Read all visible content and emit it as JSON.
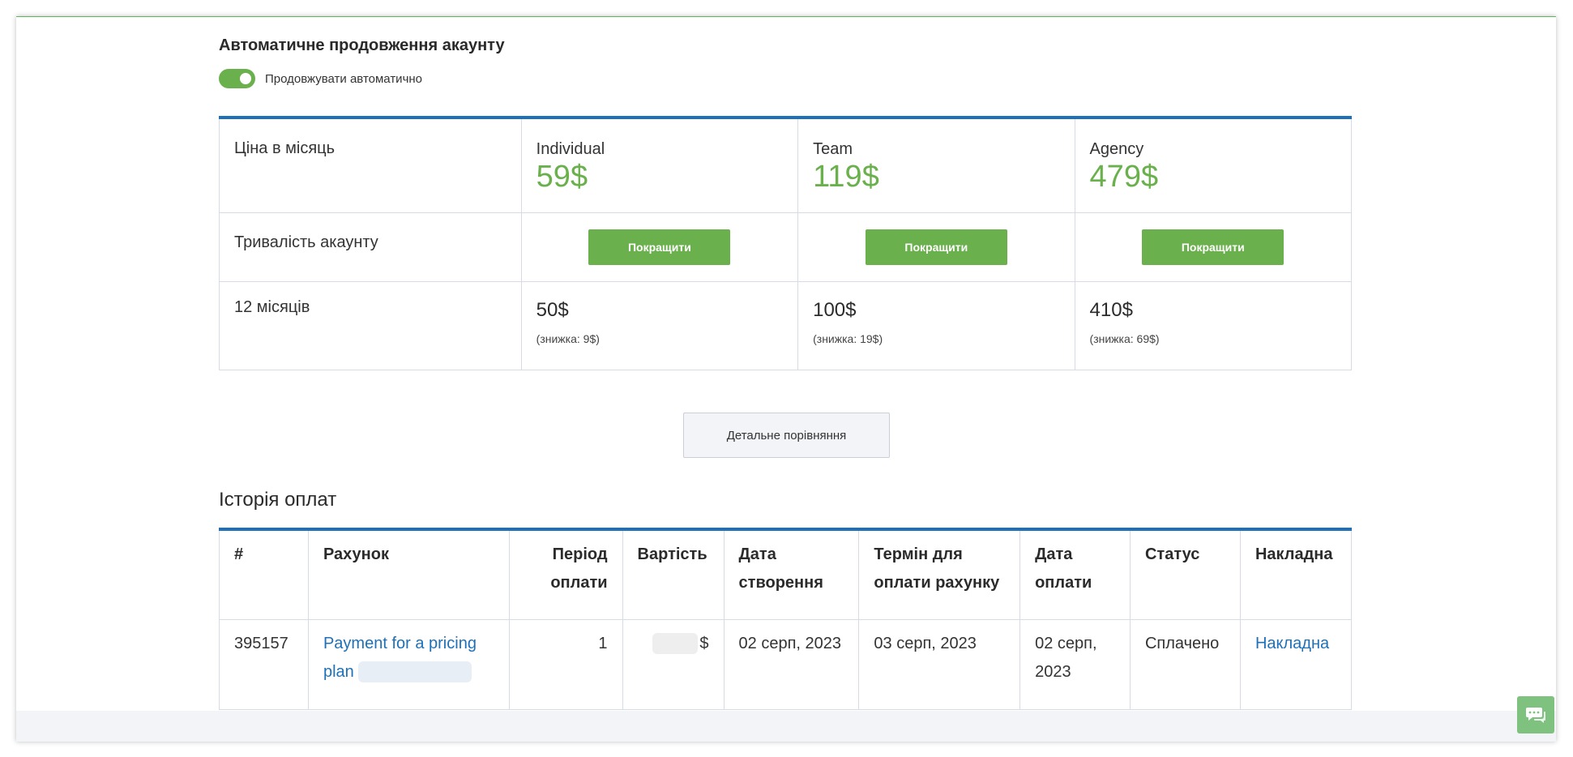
{
  "autorenew": {
    "title": "Автоматичне продовження акаунту",
    "toggle_label": "Продовжувати автоматично",
    "enabled": true
  },
  "pricing": {
    "price_per_month_label": "Ціна в місяць",
    "duration_label": "Тривалість акаунту",
    "term_label": "12 місяців",
    "upgrade_label": "Покращити",
    "plans": [
      {
        "name": "Individual",
        "price": "59$",
        "term_price": "50$",
        "discount": "(знижка: 9$)"
      },
      {
        "name": "Team",
        "price": "119$",
        "term_price": "100$",
        "discount": "(знижка: 19$)"
      },
      {
        "name": "Agency",
        "price": "479$",
        "term_price": "410$",
        "discount": "(знижка: 69$)"
      }
    ]
  },
  "compare_button": "Детальне порівняння",
  "history": {
    "title": "Історія оплат",
    "columns": [
      "#",
      "Рахунок",
      "Період оплати",
      "Вартість",
      "Дата створення",
      "Термін для оплати рахунку",
      "Дата оплати",
      "Статус",
      "Накладна"
    ],
    "rows": [
      {
        "id": "395157",
        "invoice": "Payment for a pricing plan",
        "period": "1",
        "amount": "$",
        "created": "02 серп, 2023",
        "due": "03 серп, 2023",
        "paid": "02 серп, 2023",
        "status": "Сплачено",
        "bill": "Накладна"
      }
    ]
  },
  "colors": {
    "accent_green": "#6ab04c",
    "accent_blue": "#1e70b8",
    "chat_green": "#7fc17f"
  }
}
